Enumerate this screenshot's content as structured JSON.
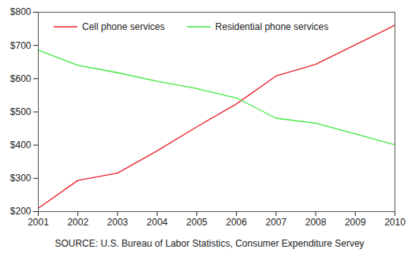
{
  "chart_data": {
    "type": "line",
    "caption": "SOURCE: U.S. Bureau of Labor Statistics, Consumer Expenditure Servey",
    "x": [
      2001,
      2002,
      2003,
      2004,
      2005,
      2006,
      2007,
      2008,
      2009,
      2010
    ],
    "series": [
      {
        "name": "Cell phone services",
        "color": "#e8202a",
        "values": [
          210,
          294,
          316,
          383,
          455,
          524,
          608,
          643,
          702,
          761
        ]
      },
      {
        "name": "Residential phone services",
        "color": "#3de83d",
        "values": [
          686,
          640,
          618,
          592,
          570,
          542,
          481,
          466,
          434,
          401
        ]
      }
    ],
    "xlim": [
      2001,
      2010
    ],
    "xticks": [
      2001,
      2002,
      2003,
      2004,
      2005,
      2006,
      2007,
      2008,
      2009,
      2010
    ],
    "ylim": [
      200,
      800
    ],
    "yticks": [
      {
        "value": 200,
        "label": "$200"
      },
      {
        "value": 300,
        "label": "$300"
      },
      {
        "value": 400,
        "label": "$400"
      },
      {
        "value": 500,
        "label": "$500"
      },
      {
        "value": 600,
        "label": "$600"
      },
      {
        "value": 700,
        "label": "$700"
      },
      {
        "value": 800,
        "label": "$800"
      }
    ],
    "grid": false,
    "legend": "top-left"
  }
}
